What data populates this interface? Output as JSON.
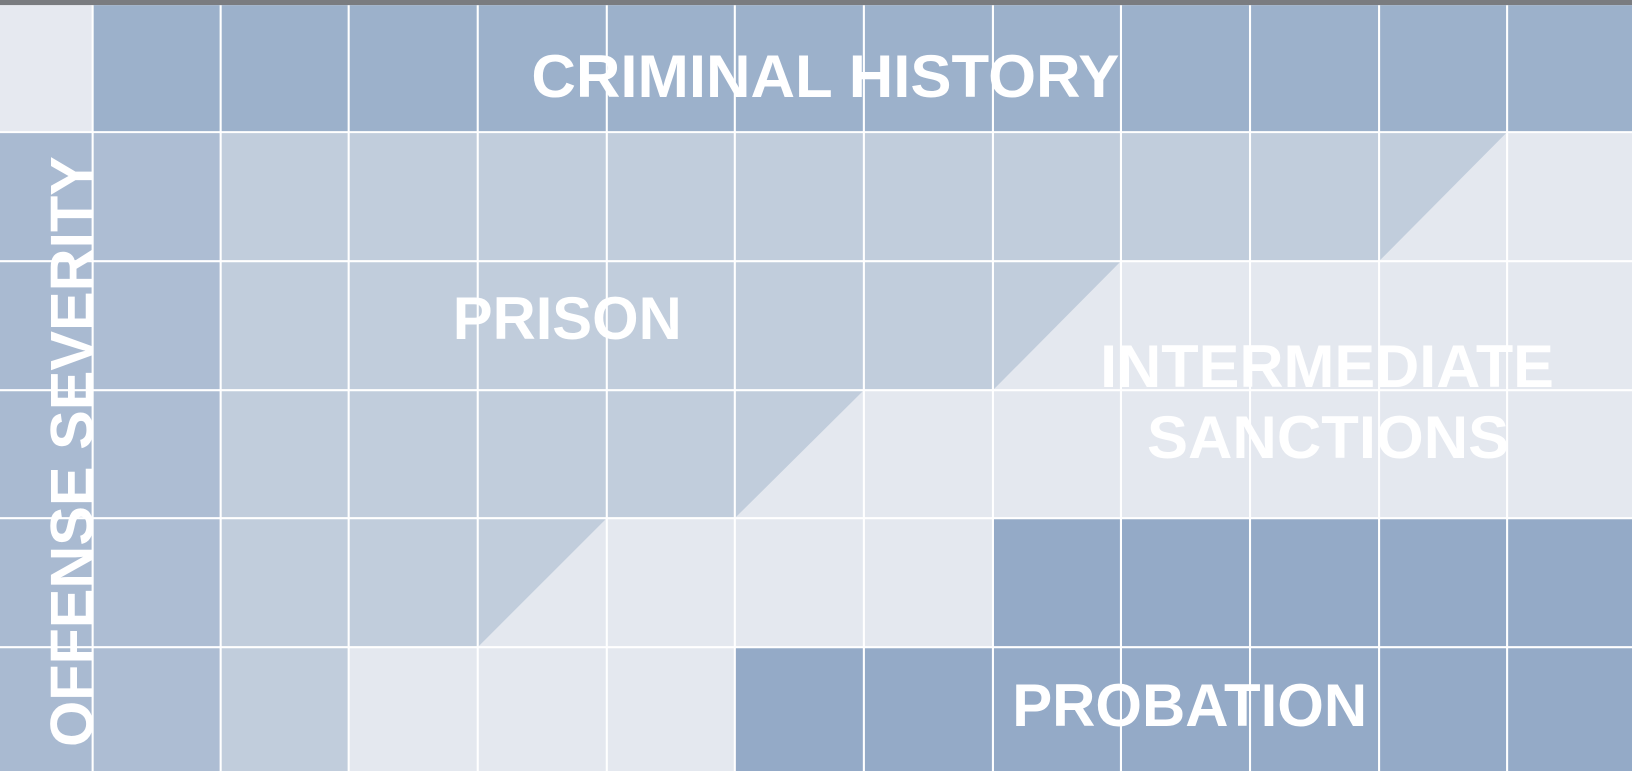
{
  "header": {
    "title": "CRIMINAL HISTORY"
  },
  "axis": {
    "label": "OFFENSE SEVERITY"
  },
  "regions": [
    {
      "label": "PRISON"
    },
    {
      "lines": [
        "INTERMEDIATE",
        "SANCTIONS"
      ]
    },
    {
      "label": "PROBATION"
    }
  ]
}
